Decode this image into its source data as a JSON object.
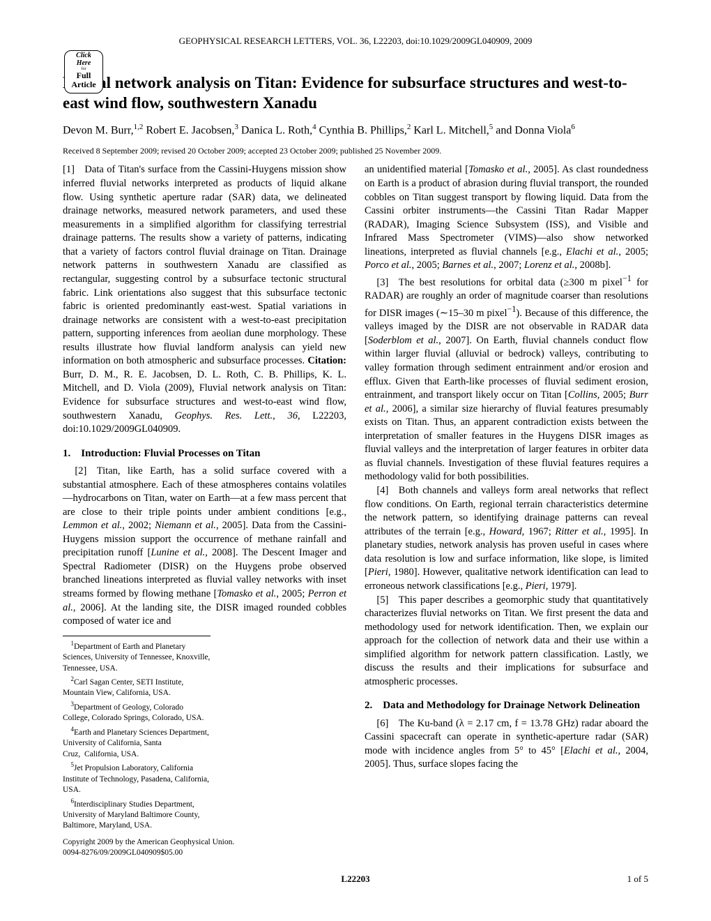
{
  "journal_header": "GEOPHYSICAL RESEARCH LETTERS, VOL. 36, L22203, doi:10.1029/2009GL040909, 2009",
  "badge": {
    "click": "Click",
    "here": "Here",
    "for": "for",
    "full": "Full",
    "article": "Article"
  },
  "title": "Fluvial network analysis on Titan: Evidence for subsurface structures and west-to-east wind flow, southwestern Xanadu",
  "authors_html": "Devon M. Burr,<sup>1,2</sup> Robert E. Jacobsen,<sup>3</sup> Danica L. Roth,<sup>4</sup> Cynthia B. Phillips,<sup>2</sup> Karl L. Mitchell,<sup>5</sup> and Donna Viola<sup>6</sup>",
  "received": "Received 8 September 2009; revised 20 October 2009; accepted 23 October 2009; published 25 November 2009.",
  "abstract": "[1] Data of Titan's surface from the Cassini-Huygens mission show inferred fluvial networks interpreted as products of liquid alkane flow. Using synthetic aperture radar (SAR) data, we delineated drainage networks, measured network parameters, and used these measurements in a simplified algorithm for classifying terrestrial drainage patterns. The results show a variety of patterns, indicating that a variety of factors control fluvial drainage on Titan. Drainage network patterns in southwestern Xanadu are classified as rectangular, suggesting control by a subsurface tectonic structural fabric. Link orientations also suggest that this subsurface tectonic fabric is oriented predominantly east-west. Spatial variations in drainage networks are consistent with a west-to-east precipitation pattern, supporting inferences from aeolian dune morphology. These results illustrate how fluvial landform analysis can yield new information on both atmospheric and subsurface processes.",
  "citation_label": "Citation:",
  "citation_text": "Burr, D. M., R. E. Jacobsen, D. L. Roth, C. B. Phillips, K. L. Mitchell, and D. Viola (2009), Fluvial network analysis on Titan: Evidence for subsurface structures and west-to-east wind flow, southwestern Xanadu, <i>Geophys. Res. Lett.</i>, <i>36</i>, L22203, doi:10.1029/2009GL040909.",
  "sec1_head": "1. Introduction: Fluvial Processes on Titan",
  "para2": "[2] Titan, like Earth, has a solid surface covered with a substantial atmosphere. Each of these atmospheres contains volatiles—hydrocarbons on Titan, water on Earth—at a few mass percent that are close to their triple points under ambient conditions [e.g., <i>Lemmon et al.</i>, 2002; <i>Niemann et al.</i>, 2005]. Data from the Cassini-Huygens mission support the occurrence of methane rainfall and precipitation runoff [<i>Lunine et al.</i>, 2008]. The Descent Imager and Spectral Radiometer (DISR) on the Huygens probe observed branched lineations interpreted as fluvial valley networks with inset streams formed by flowing methane [<i>Tomasko et al.</i>, 2005; <i>Perron et al.</i>, 2006]. At the landing site, the DISR imaged rounded cobbles composed of water ice and",
  "col2_top": "an unidentified material [<i>Tomasko et al.</i>, 2005]. As clast roundedness on Earth is a product of abrasion during fluvial transport, the rounded cobbles on Titan suggest transport by flowing liquid. Data from the Cassini orbiter instruments—the Cassini Titan Radar Mapper (RADAR), Imaging Science Subsystem (ISS), and Visible and Infrared Mass Spectrometer (VIMS)—also show networked lineations, interpreted as fluvial channels [e.g., <i>Elachi et al.</i>, 2005; <i>Porco et al.</i>, 2005; <i>Barnes et al.</i>, 2007; <i>Lorenz et al.</i>, 2008b].",
  "para3": "[3] The best resolutions for orbital data (≥300 m pixel<sup>−1</sup> for RADAR) are roughly an order of magnitude coarser than resolutions for DISR images (∼15–30 m pixel<sup>−1</sup>). Because of this difference, the valleys imaged by the DISR are not observable in RADAR data [<i>Soderblom et al.</i>, 2007]. On Earth, fluvial channels conduct flow within larger fluvial (alluvial or bedrock) valleys, contributing to valley formation through sediment entrainment and/or erosion and efflux. Given that Earth-like processes of fluvial sediment erosion, entrainment, and transport likely occur on Titan [<i>Collins</i>, 2005; <i>Burr et al.</i>, 2006], a similar size hierarchy of fluvial features presumably exists on Titan. Thus, an apparent contradiction exists between the interpretation of smaller features in the Huygens DISR images as fluvial valleys and the interpretation of larger features in orbiter data as fluvial channels. Investigation of these fluvial features requires a methodology valid for both possibilities.",
  "para4": "[4] Both channels and valleys form areal networks that reflect flow conditions. On Earth, regional terrain characteristics determine the network pattern, so identifying drainage patterns can reveal attributes of the terrain [e.g., <i>Howard</i>, 1967; <i>Ritter et al.</i>, 1995]. In planetary studies, network analysis has proven useful in cases where data resolution is low and surface information, like slope, is limited [<i>Pieri</i>, 1980]. However, qualitative network identification can lead to erroneous network classifications [e.g., <i>Pieri</i>, 1979].",
  "para5": "[5] This paper describes a geomorphic study that quantitatively characterizes fluvial networks on Titan. We first present the data and methodology used for network identification. Then, we explain our approach for the collection of network data and their use within a simplified algorithm for network pattern classification. Lastly, we discuss the results and their implications for subsurface and atmospheric processes.",
  "sec2_head": "2. Data and Methodology for Drainage Network Delineation",
  "para6": "[6] The Ku-band (λ = 2.17 cm, f = 13.78 GHz) radar aboard the Cassini spacecraft can operate in synthetic-aperture radar (SAR) mode with incidence angles from 5° to 45° [<i>Elachi et al.</i>, 2004, 2005]. Thus, surface slopes facing the",
  "affiliations": [
    "<sup>1</sup>Department of Earth and Planetary Sciences, University of Tennessee, Knoxville, Tennessee, USA.",
    "<sup>2</sup>Carl Sagan Center, SETI Institute, Mountain View, California, USA.",
    "<sup>3</sup>Department of Geology, Colorado College, Colorado Springs, Colorado, USA.",
    "<sup>4</sup>Earth and Planetary Sciences Department, University of California, Santa Cruz,  California, USA.",
    "<sup>5</sup>Jet Propulsion Laboratory, California Institute of Technology, Pasadena, California, USA.",
    "<sup>6</sup>Interdisciplinary Studies Department, University of Maryland Baltimore County, Baltimore, Maryland, USA."
  ],
  "copyright1": "Copyright 2009 by the American Geophysical Union.",
  "copyright2": "0094-8276/09/2009GL040909$05.00",
  "footer_center": "L22203",
  "footer_right": "1 of 5"
}
